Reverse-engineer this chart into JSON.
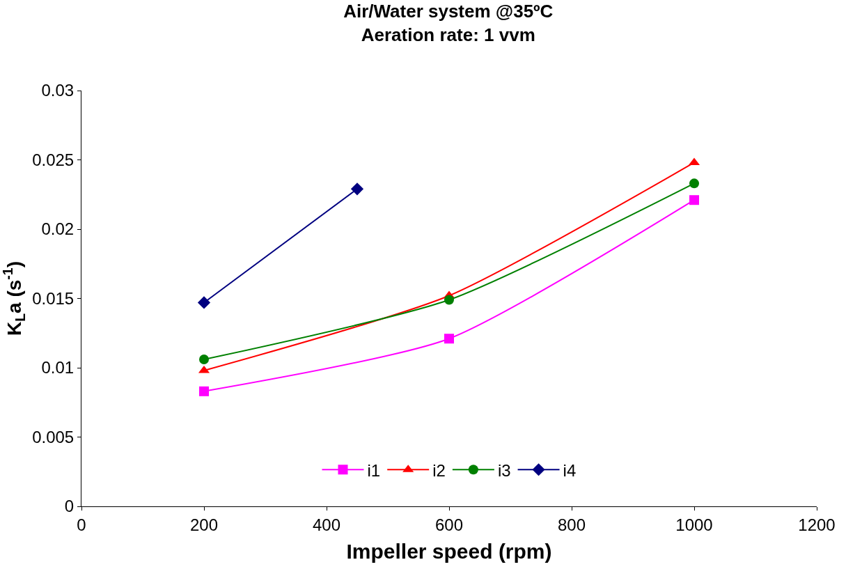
{
  "chart_data": {
    "type": "line",
    "title": "Air/Water system @35ºC\nAeration rate: 1 vvm",
    "xlabel": "Impeller speed (rpm)",
    "ylabel": "K$_{L}$a (s$^{-1}$)",
    "x": [
      200,
      600,
      1000
    ],
    "series": [
      {
        "name": "i1",
        "color": "#ff00ff",
        "marker": "square",
        "values": [
          0.0083,
          0.0121,
          0.0221
        ]
      },
      {
        "name": "i2",
        "color": "#ff0000",
        "marker": "triangle",
        "values": [
          0.0098,
          0.0152,
          0.0248
        ]
      },
      {
        "name": "i3",
        "color": "#008000",
        "marker": "circle",
        "values": [
          0.0106,
          0.0149,
          0.0233
        ]
      },
      {
        "name": "i4",
        "color": "#000080",
        "marker": "diamond",
        "x": [
          200,
          450
        ],
        "values": [
          0.0147,
          0.0229
        ]
      }
    ],
    "xlim": [
      0,
      1200
    ],
    "xticks": [
      0,
      200,
      400,
      600,
      800,
      1000,
      1200
    ],
    "ylim": [
      0,
      0.03
    ],
    "yticks": [
      0,
      0.005,
      0.01,
      0.015,
      0.02,
      0.025,
      0.03
    ],
    "legend": "bottom",
    "line_style": "solid"
  }
}
